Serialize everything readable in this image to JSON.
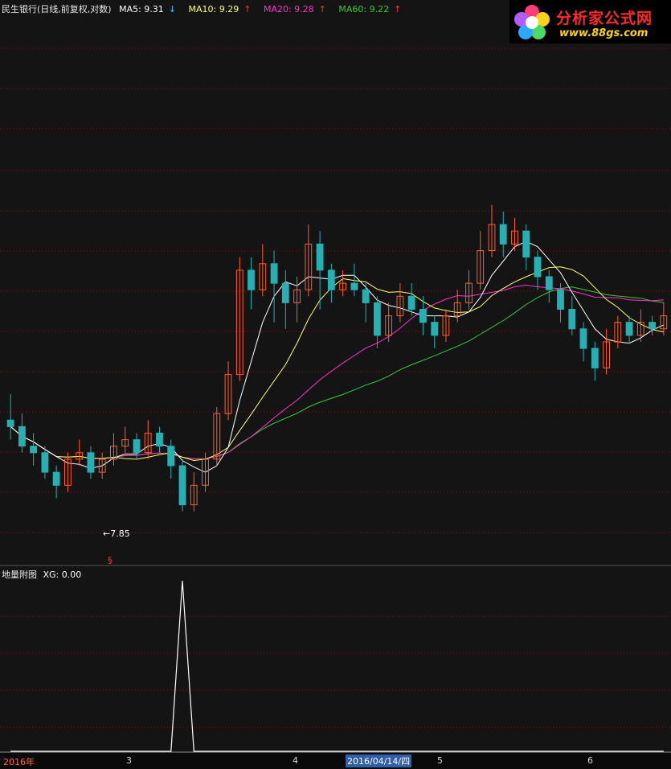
{
  "header": {
    "stock_title": "民生银行(日线,前复权,对数)",
    "ma5": {
      "label": "MA5: 9.31",
      "arrow": "↓",
      "color": "#ffffff"
    },
    "ma10": {
      "label": "MA10: 9.29",
      "arrow": "↑",
      "color": "#ffff66"
    },
    "ma20": {
      "label": "MA20: 9.28",
      "arrow": "↑",
      "color": "#ff33cc"
    },
    "ma60": {
      "label": "MA60: 9.22",
      "arrow": "↑",
      "color": "#33cc33"
    }
  },
  "logo": {
    "name": "分析家公式网",
    "url": "www.88gs.com"
  },
  "main_chart": {
    "low_marker": "←7.85",
    "signal_marker": "§"
  },
  "sub_chart": {
    "title": "地量附图",
    "xg_label": "XG: 0.00",
    "xg_color": "#ffffff"
  },
  "x_axis": {
    "labels": [
      "2016年",
      "3",
      "4",
      "2016/04/14/四",
      "5",
      "6"
    ],
    "selected_label": "2016/04/14/四"
  },
  "colors": {
    "up": "#ff5f2a",
    "down": "#26b0b4",
    "grid": "#7a1f1f",
    "background": "#141414"
  },
  "chart_data": {
    "type": "candlestick",
    "price_range": [
      7.7,
      10.6
    ],
    "candles": [
      [
        8.55,
        8.5,
        8.75,
        8.4
      ],
      [
        8.5,
        8.35,
        8.6,
        8.3
      ],
      [
        8.35,
        8.3,
        8.45,
        8.2
      ],
      [
        8.3,
        8.15,
        8.35,
        8.1
      ],
      [
        8.15,
        8.05,
        8.2,
        7.95
      ],
      [
        8.05,
        8.25,
        8.3,
        8.0
      ],
      [
        8.25,
        8.3,
        8.4,
        8.2
      ],
      [
        8.3,
        8.15,
        8.35,
        8.1
      ],
      [
        8.15,
        8.25,
        8.3,
        8.1
      ],
      [
        8.25,
        8.35,
        8.45,
        8.2
      ],
      [
        8.35,
        8.4,
        8.5,
        8.3
      ],
      [
        8.4,
        8.3,
        8.45,
        8.25
      ],
      [
        8.3,
        8.45,
        8.55,
        8.25
      ],
      [
        8.45,
        8.35,
        8.5,
        8.3
      ],
      [
        8.35,
        8.2,
        8.4,
        8.1
      ],
      [
        8.2,
        7.9,
        8.25,
        7.85
      ],
      [
        7.9,
        8.05,
        8.15,
        7.85
      ],
      [
        8.05,
        8.25,
        8.3,
        8.0
      ],
      [
        8.25,
        8.6,
        8.65,
        8.2
      ],
      [
        8.6,
        8.9,
        9.0,
        8.55
      ],
      [
        8.9,
        9.7,
        9.8,
        8.85
      ],
      [
        9.7,
        9.55,
        9.8,
        9.4
      ],
      [
        9.55,
        9.75,
        9.9,
        9.5
      ],
      [
        9.75,
        9.6,
        9.85,
        9.3
      ],
      [
        9.6,
        9.45,
        9.7,
        9.25
      ],
      [
        9.45,
        9.55,
        9.65,
        9.3
      ],
      [
        9.55,
        9.9,
        10.05,
        9.5
      ],
      [
        9.9,
        9.7,
        10.0,
        9.4
      ],
      [
        9.7,
        9.55,
        9.75,
        9.45
      ],
      [
        9.55,
        9.6,
        9.7,
        9.5
      ],
      [
        9.6,
        9.55,
        9.75,
        9.5
      ],
      [
        9.55,
        9.45,
        9.6,
        9.3
      ],
      [
        9.45,
        9.2,
        9.5,
        9.1
      ],
      [
        9.2,
        9.35,
        9.45,
        9.15
      ],
      [
        9.35,
        9.5,
        9.6,
        9.3
      ],
      [
        9.5,
        9.4,
        9.6,
        9.35
      ],
      [
        9.4,
        9.3,
        9.5,
        9.2
      ],
      [
        9.3,
        9.2,
        9.35,
        9.1
      ],
      [
        9.2,
        9.35,
        9.4,
        9.15
      ],
      [
        9.35,
        9.45,
        9.55,
        9.3
      ],
      [
        9.45,
        9.6,
        9.7,
        9.4
      ],
      [
        9.6,
        9.85,
        10.0,
        9.55
      ],
      [
        9.85,
        10.05,
        10.2,
        9.8
      ],
      [
        10.05,
        9.9,
        10.15,
        9.8
      ],
      [
        9.9,
        10.0,
        10.1,
        9.85
      ],
      [
        10.0,
        9.8,
        10.05,
        9.7
      ],
      [
        9.8,
        9.65,
        9.85,
        9.55
      ],
      [
        9.65,
        9.55,
        9.7,
        9.45
      ],
      [
        9.55,
        9.4,
        9.6,
        9.3
      ],
      [
        9.4,
        9.25,
        9.5,
        9.2
      ],
      [
        9.25,
        9.1,
        9.3,
        9.0
      ],
      [
        9.1,
        8.95,
        9.15,
        8.85
      ],
      [
        8.95,
        9.15,
        9.25,
        8.9
      ],
      [
        9.15,
        9.3,
        9.35,
        9.1
      ],
      [
        9.3,
        9.2,
        9.35,
        9.15
      ],
      [
        9.2,
        9.3,
        9.4,
        9.15
      ],
      [
        9.3,
        9.25,
        9.35,
        9.2
      ],
      [
        9.25,
        9.35,
        9.45,
        9.2
      ]
    ],
    "xg_series": [
      0,
      0,
      0,
      0,
      0,
      0,
      0,
      0,
      0,
      0,
      0,
      0,
      0,
      0,
      0,
      1,
      0,
      0,
      0,
      0,
      0,
      0,
      0,
      0,
      0,
      0,
      0,
      0,
      0,
      0,
      0,
      0,
      0,
      0,
      0,
      0,
      0,
      0,
      0,
      0,
      0,
      0,
      0,
      0,
      0,
      0,
      0,
      0,
      0,
      0,
      0,
      0,
      0,
      0,
      0,
      0,
      0,
      0
    ]
  }
}
